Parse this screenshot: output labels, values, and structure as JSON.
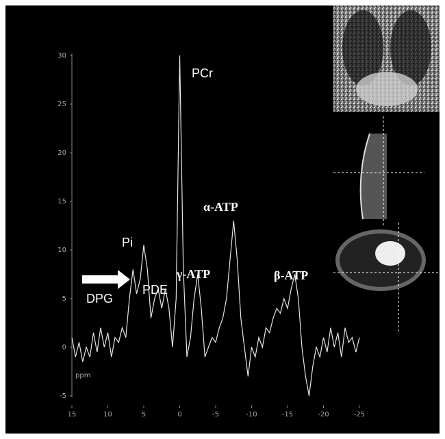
{
  "chart_data": {
    "type": "line",
    "x": [
      15,
      14.5,
      14,
      13.5,
      13,
      12.5,
      12,
      11.5,
      11,
      10.5,
      10,
      9.5,
      9,
      8.5,
      8,
      7.5,
      7,
      6.5,
      6,
      5.5,
      5,
      4.5,
      4,
      3.5,
      3,
      2.5,
      2,
      1.5,
      1,
      0.5,
      0,
      -0.5,
      -1,
      -1.5,
      -2,
      -2.5,
      -3,
      -3.5,
      -4,
      -4.5,
      -5,
      -5.5,
      -6,
      -6.5,
      -7,
      -7.5,
      -8,
      -8.5,
      -9,
      -9.5,
      -10,
      -10.5,
      -11,
      -11.5,
      -12,
      -12.5,
      -13,
      -13.5,
      -14,
      -14.5,
      -15,
      -15.5,
      -16,
      -16.5,
      -17,
      -17.5,
      -18,
      -18.5,
      -19,
      -19.5,
      -20,
      -20.5,
      -21,
      -21.5,
      -22,
      -22.5,
      -23,
      -23.5,
      -24,
      -24.5,
      -25
    ],
    "series": [
      {
        "color": "#e6e6e6",
        "values": [
          1,
          -1,
          0.5,
          -1.5,
          0,
          -1,
          1.5,
          -0.5,
          2,
          0,
          1.5,
          -1,
          1,
          0.5,
          2,
          1,
          5,
          8,
          5.5,
          7,
          10.5,
          8,
          3,
          5,
          6,
          4,
          6,
          4,
          0,
          5,
          30,
          8,
          -1,
          1,
          5,
          7.5,
          4,
          -1,
          0,
          1,
          0.5,
          2,
          3,
          5,
          9,
          13,
          9,
          3,
          0,
          -3,
          0,
          -1,
          1,
          0,
          2,
          1.5,
          3,
          4,
          3.5,
          5,
          4,
          6,
          7.5,
          5,
          0,
          -3,
          -5,
          -2,
          0,
          -1,
          1,
          -0.5,
          2,
          0,
          1.5,
          -1,
          2,
          0.5,
          1,
          -0.5,
          1
        ]
      }
    ],
    "xlim": [
      15,
      -25
    ],
    "xticks": [
      15,
      10,
      5,
      0,
      -5,
      -10,
      -15,
      -20,
      -25
    ],
    "ylim": [
      -5,
      30
    ],
    "yticks": [
      -5,
      0,
      5,
      10,
      15,
      20,
      25,
      30
    ],
    "x_label": "ppm",
    "annotations": [
      "PCr",
      "Pi",
      "DPG",
      "PDE",
      "γ-ATP",
      "α-ATP",
      "β-ATP"
    ]
  }
}
